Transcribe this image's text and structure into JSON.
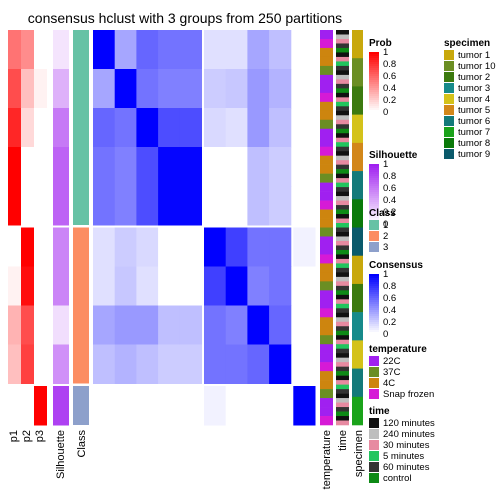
{
  "chart_data": {
    "type": "heatmap",
    "title": "consensus hclust with 3 groups from 250 partitions",
    "column_labels": [
      "p1",
      "p2",
      "p3",
      "Silhouette",
      "Class",
      "temperature",
      "time",
      "specimen"
    ],
    "group_counts": [
      5,
      4,
      1
    ],
    "group_classes": [
      1,
      2,
      3
    ],
    "prob_rows": [
      [
        0.55,
        0.45,
        0.0
      ],
      [
        0.7,
        0.25,
        0.05
      ],
      [
        0.85,
        0.15,
        0.0
      ],
      [
        1.0,
        0.0,
        0.0
      ],
      [
        1.0,
        0.0,
        0.0
      ],
      [
        0.0,
        1.0,
        0.0
      ],
      [
        0.05,
        0.95,
        0.0
      ],
      [
        0.3,
        0.7,
        0.0
      ],
      [
        0.25,
        0.75,
        0.0
      ],
      [
        0.0,
        0.0,
        1.0
      ]
    ],
    "silhouette_rows": [
      0.12,
      0.35,
      0.6,
      0.7,
      0.7,
      0.55,
      0.55,
      0.15,
      0.5,
      0.85
    ],
    "consensus_matrix": [
      [
        1.0,
        0.35,
        0.6,
        0.55,
        0.55,
        0.12,
        0.12,
        0.35,
        0.25,
        0.0
      ],
      [
        0.35,
        1.0,
        0.55,
        0.5,
        0.5,
        0.2,
        0.22,
        0.4,
        0.3,
        0.0
      ],
      [
        0.6,
        0.55,
        1.0,
        0.7,
        0.7,
        0.15,
        0.12,
        0.4,
        0.25,
        0.0
      ],
      [
        0.55,
        0.5,
        0.7,
        0.98,
        0.98,
        0.0,
        0.0,
        0.25,
        0.2,
        0.0
      ],
      [
        0.55,
        0.5,
        0.7,
        0.98,
        0.98,
        0.0,
        0.0,
        0.25,
        0.2,
        0.0
      ],
      [
        0.12,
        0.2,
        0.15,
        0.0,
        0.0,
        1.0,
        0.75,
        0.55,
        0.55,
        0.05
      ],
      [
        0.12,
        0.22,
        0.12,
        0.0,
        0.0,
        0.75,
        1.0,
        0.5,
        0.55,
        0.0
      ],
      [
        0.35,
        0.4,
        0.4,
        0.25,
        0.25,
        0.55,
        0.5,
        1.0,
        0.6,
        0.0
      ],
      [
        0.25,
        0.3,
        0.25,
        0.2,
        0.2,
        0.55,
        0.55,
        0.6,
        1.0,
        0.0
      ],
      [
        0.0,
        0.0,
        0.0,
        0.0,
        0.0,
        0.05,
        0.0,
        0.0,
        0.0,
        1.0
      ]
    ],
    "legends": {
      "prob": {
        "title": "Prob",
        "ticks": [
          "1",
          "0.8",
          "0.6",
          "0.4",
          "0.2",
          "0"
        ]
      },
      "silhouette": {
        "title": "Silhouette",
        "ticks": [
          "1",
          "0.8",
          "0.6",
          "0.4",
          "0.2",
          "0"
        ]
      },
      "class": {
        "title": "Class",
        "entries": [
          {
            "label": "1",
            "color": "#66c2a5"
          },
          {
            "label": "2",
            "color": "#fc8d62"
          },
          {
            "label": "3",
            "color": "#8da0cb"
          }
        ]
      },
      "consensus": {
        "title": "Consensus",
        "ticks": [
          "1",
          "0.8",
          "0.6",
          "0.4",
          "0.2",
          "0"
        ]
      },
      "temperature": {
        "title": "temperature",
        "entries": [
          {
            "label": "22C",
            "color": "#a020f0"
          },
          {
            "label": "37C",
            "color": "#6b8e23"
          },
          {
            "label": "4C",
            "color": "#cd850f"
          },
          {
            "label": "Snap frozen",
            "color": "#d61ad6"
          }
        ]
      },
      "time": {
        "title": "time",
        "entries": [
          {
            "label": "120 minutes",
            "color": "#111111"
          },
          {
            "label": "240 minutes",
            "color": "#bebebe"
          },
          {
            "label": "30 minutes",
            "color": "#e78aa1"
          },
          {
            "label": "5 minutes",
            "color": "#22c55e"
          },
          {
            "label": "60 minutes",
            "color": "#333333"
          },
          {
            "label": "control",
            "color": "#0e8a16"
          }
        ]
      },
      "specimen": {
        "title": "specimen",
        "entries": [
          {
            "label": "tumor 1",
            "color": "#c8a80c"
          },
          {
            "label": "tumor 10",
            "color": "#6b8e23"
          },
          {
            "label": "tumor 2",
            "color": "#3c7a0f"
          },
          {
            "label": "tumor 3",
            "color": "#168a8a"
          },
          {
            "label": "tumor 4",
            "color": "#d4c21a"
          },
          {
            "label": "tumor 5",
            "color": "#d2871a"
          },
          {
            "label": "tumor 6",
            "color": "#137a7a"
          },
          {
            "label": "tumor 7",
            "color": "#1aa31a"
          },
          {
            "label": "tumor 8",
            "color": "#0a7a0a"
          },
          {
            "label": "tumor 9",
            "color": "#0a5a6b"
          }
        ]
      }
    }
  }
}
